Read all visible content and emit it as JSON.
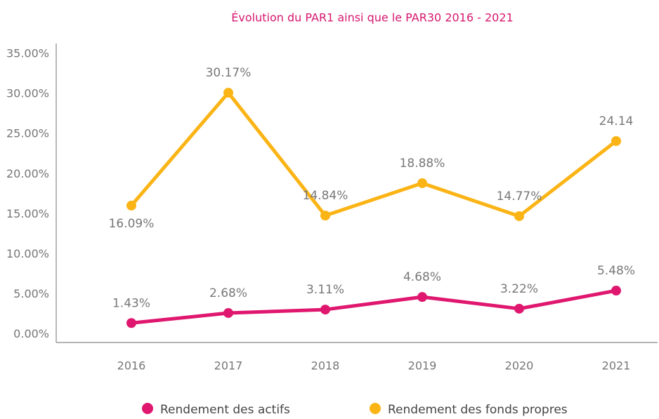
{
  "chart_data": {
    "type": "line",
    "title": "Évolution du PAR1 ainsi que le PAR30 2016 - 2021",
    "categories": [
      "2016",
      "2017",
      "2018",
      "2019",
      "2020",
      "2021"
    ],
    "series": [
      {
        "name": "Rendement des actifs",
        "color": "#e0176f",
        "values": [
          1.43,
          2.68,
          3.11,
          4.68,
          3.22,
          5.48
        ],
        "value_labels": [
          "1.43%",
          "2.68%",
          "3.11%",
          "4.68%",
          "3.22%",
          "5.48%"
        ]
      },
      {
        "name": "Rendement des fonds propres",
        "color": "#fbb416",
        "values": [
          16.09,
          30.17,
          14.84,
          18.88,
          14.77,
          24.14
        ],
        "value_labels": [
          "16.09%",
          "30.17%",
          "14.84%",
          "18.88%",
          "14.77%",
          "24.14"
        ]
      }
    ],
    "ylim": [
      -1,
      35
    ],
    "yticks": [
      {
        "value": 0,
        "label": "0.00%"
      },
      {
        "value": 5,
        "label": "5.00%"
      },
      {
        "value": 10,
        "label": "10.00%"
      },
      {
        "value": 15,
        "label": "15.00%"
      },
      {
        "value": 20,
        "label": "20.00%"
      },
      {
        "value": 25,
        "label": "25.00%"
      },
      {
        "value": 30,
        "label": "30.00%"
      },
      {
        "value": 35,
        "label": "35.00%"
      }
    ],
    "grid": false,
    "legend": "bottom"
  }
}
